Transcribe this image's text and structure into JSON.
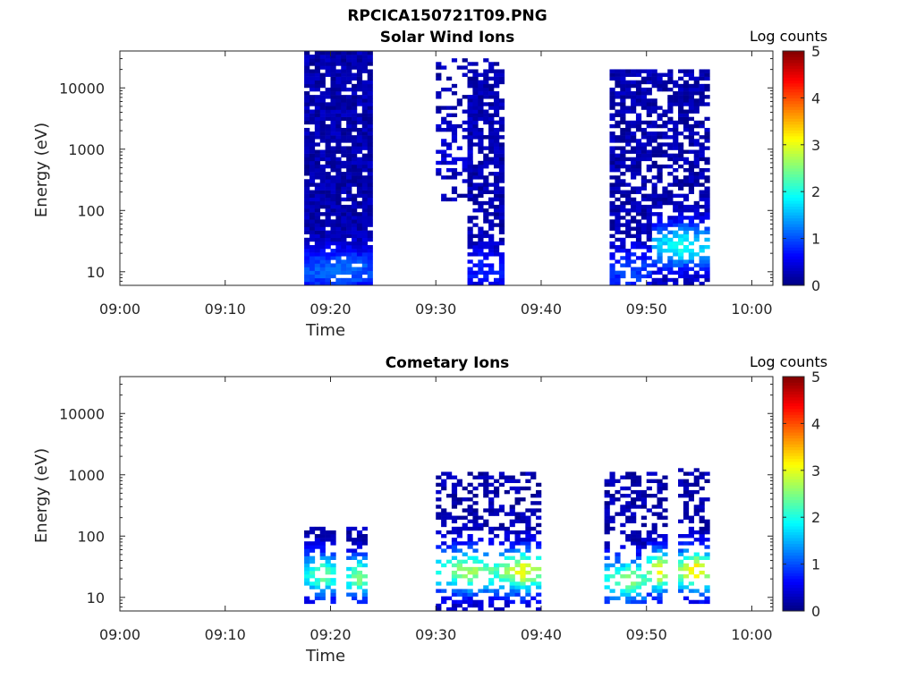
{
  "title": "RPCICA150721T09.PNG",
  "chart_data": [
    {
      "type": "heatmap",
      "title": "Solar Wind Ions",
      "xlabel": "Time",
      "ylabel": "Energy (eV)",
      "x_ticks": [
        "09:00",
        "09:10",
        "09:20",
        "09:30",
        "09:40",
        "09:50",
        "10:00"
      ],
      "xlim": [
        "09:00",
        "10:02"
      ],
      "y_scale": "log",
      "y_ticks": [
        "10",
        "100",
        "1000",
        "10000"
      ],
      "ylim": [
        6,
        40000
      ],
      "colorbar": {
        "label": "Log counts",
        "ticks": [
          "0",
          "1",
          "2",
          "3",
          "4",
          "5"
        ],
        "range": [
          0,
          5
        ],
        "colormap": "jet"
      },
      "bursts": [
        {
          "start": "09:17:30",
          "end": "09:24:00",
          "e_min": 6,
          "e_max": 35000,
          "density": 0.9,
          "peak_log_counts": 1.0,
          "peak_energy": 10
        },
        {
          "start": "09:30:00",
          "end": "09:36:00",
          "e_min": 150,
          "e_max": 30000,
          "density": 0.35,
          "peak_log_counts": 0.3,
          "peak_energy": 1000
        },
        {
          "start": "09:33:00",
          "end": "09:36:30",
          "e_min": 6,
          "e_max": 20000,
          "density": 0.7,
          "peak_log_counts": 0.6,
          "peak_energy": 10
        },
        {
          "start": "09:46:30",
          "end": "09:50:30",
          "e_min": 6,
          "e_max": 20000,
          "density": 0.7,
          "peak_log_counts": 0.8,
          "peak_energy": 10
        },
        {
          "start": "09:50:30",
          "end": "09:56:00",
          "e_min": 6,
          "e_max": 20000,
          "density": 0.65,
          "peak_log_counts": 1.8,
          "peak_energy": 25
        }
      ]
    },
    {
      "type": "heatmap",
      "title": "Cometary Ions",
      "xlabel": "Time",
      "ylabel": "Energy (eV)",
      "x_ticks": [
        "09:00",
        "09:10",
        "09:20",
        "09:30",
        "09:40",
        "09:50",
        "10:00"
      ],
      "xlim": [
        "09:00",
        "10:02"
      ],
      "y_scale": "log",
      "y_ticks": [
        "10",
        "100",
        "1000",
        "10000"
      ],
      "ylim": [
        6,
        40000
      ],
      "colorbar": {
        "label": "Log counts",
        "ticks": [
          "0",
          "1",
          "2",
          "3",
          "4",
          "5"
        ],
        "range": [
          0,
          5
        ],
        "colormap": "jet"
      },
      "bursts": [
        {
          "start": "09:17:30",
          "end": "09:20:30",
          "e_min": 8,
          "e_max": 130,
          "density": 0.6,
          "peak_log_counts": 2.2,
          "peak_energy": 22
        },
        {
          "start": "09:21:30",
          "end": "09:23:30",
          "e_min": 8,
          "e_max": 130,
          "density": 0.6,
          "peak_log_counts": 2.3,
          "peak_energy": 20
        },
        {
          "start": "09:30:00",
          "end": "09:36:00",
          "e_min": 6,
          "e_max": 1100,
          "density": 0.45,
          "peak_log_counts": 2.5,
          "peak_energy": 25
        },
        {
          "start": "09:36:00",
          "end": "09:40:00",
          "e_min": 6,
          "e_max": 1100,
          "density": 0.5,
          "peak_log_counts": 2.9,
          "peak_energy": 25
        },
        {
          "start": "09:46:00",
          "end": "09:50:00",
          "e_min": 8,
          "e_max": 1000,
          "density": 0.4,
          "peak_log_counts": 2.4,
          "peak_energy": 18
        },
        {
          "start": "09:50:00",
          "end": "09:52:00",
          "e_min": 8,
          "e_max": 1000,
          "density": 0.5,
          "peak_log_counts": 3.0,
          "peak_energy": 25
        },
        {
          "start": "09:53:00",
          "end": "09:56:00",
          "e_min": 8,
          "e_max": 1200,
          "density": 0.45,
          "peak_log_counts": 3.1,
          "peak_energy": 25
        }
      ]
    }
  ]
}
